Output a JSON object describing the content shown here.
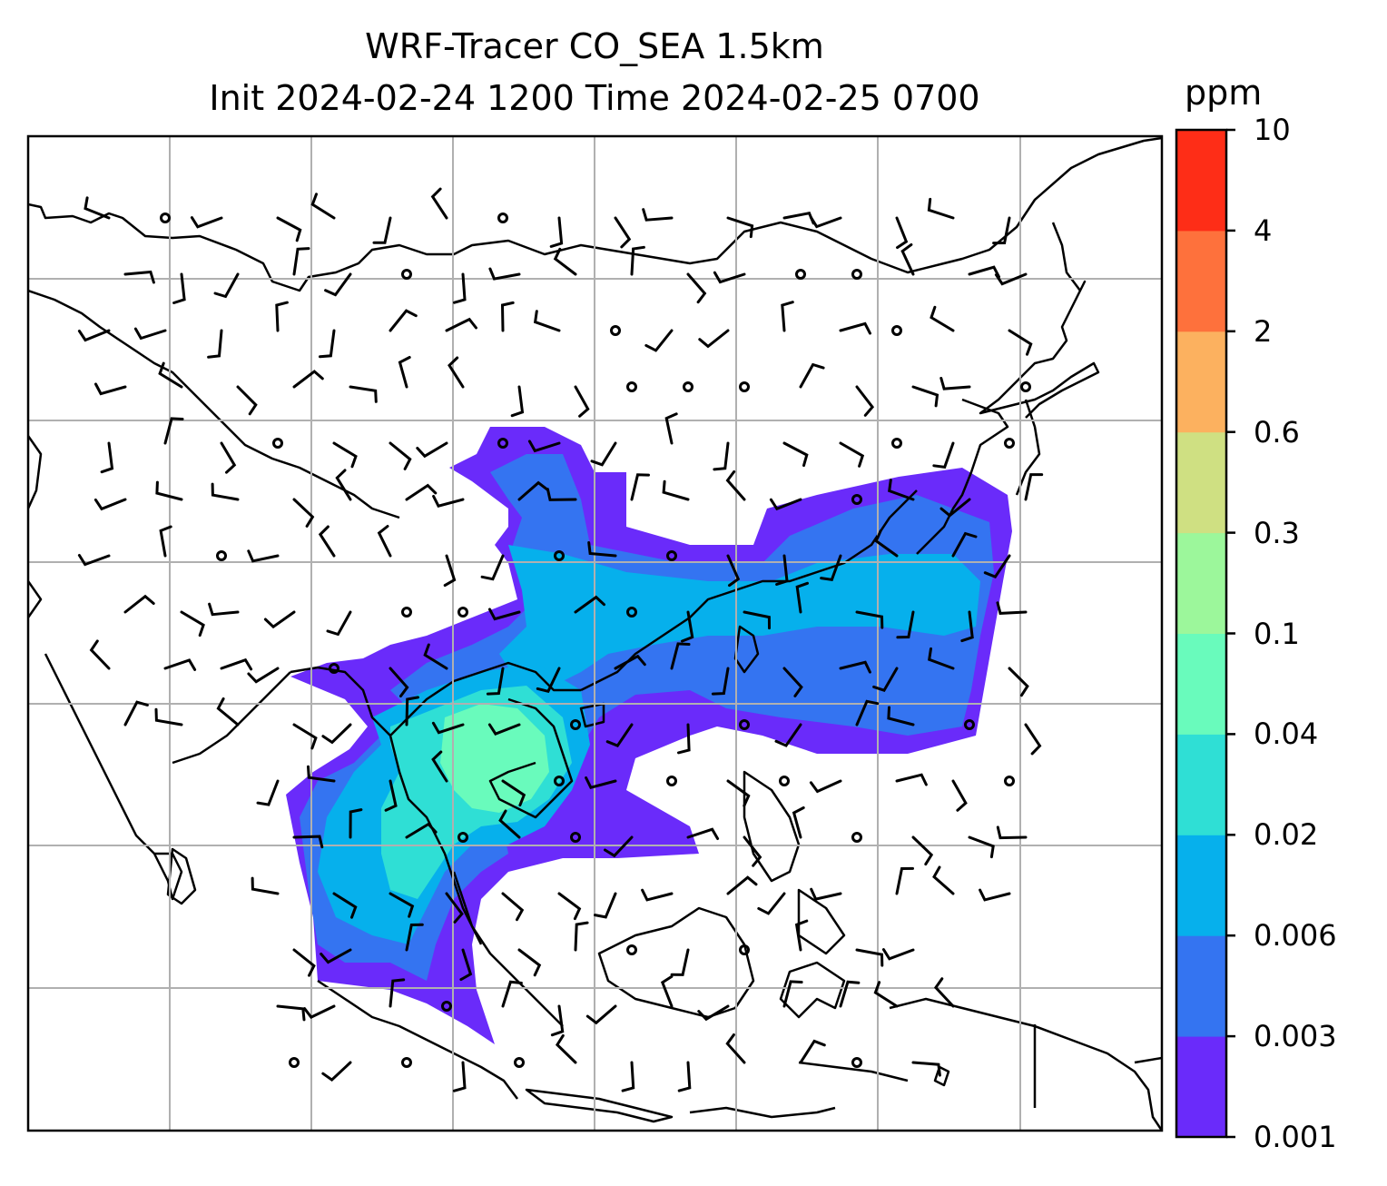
{
  "title": {
    "line1": "WRF-Tracer CO_SEA 1.5km",
    "line2": "Init 2024-02-24 1200 Time 2024-02-25 0700"
  },
  "colorbar": {
    "unit": "ppm",
    "levels": [
      "0.001",
      "0.003",
      "0.006",
      "0.02",
      "0.04",
      "0.1",
      "0.3",
      "0.6",
      "2",
      "4",
      "10"
    ],
    "colors": [
      "#6a2bfa",
      "#3474f1",
      "#06b0ec",
      "#2fdfd5",
      "#69fbbc",
      "#9cf79b",
      "#cfe082",
      "#fcb15f",
      "#fe713c",
      "#fe2d17"
    ]
  },
  "map": {
    "gridlines": true,
    "wind_barbs": true,
    "coastlines": true
  }
}
